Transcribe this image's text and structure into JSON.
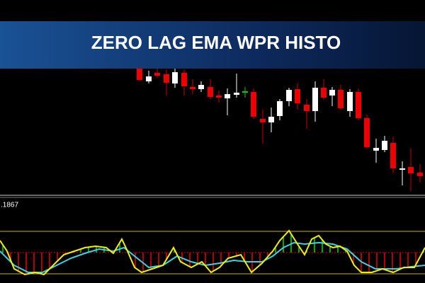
{
  "banner": {
    "title": "ZERO LAG EMA WPR HISTO"
  },
  "indicator": {
    "label": ".1867"
  }
}
